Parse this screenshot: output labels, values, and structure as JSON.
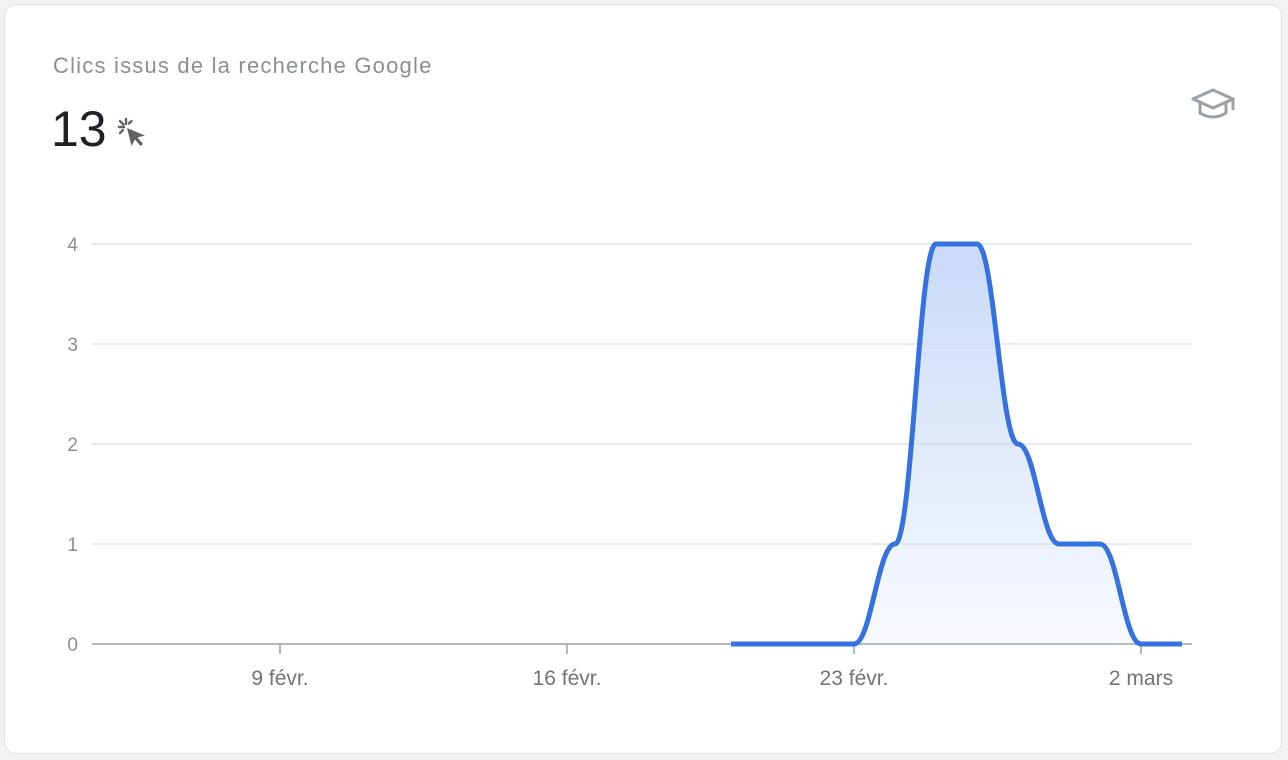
{
  "card": {
    "title": "Clics issus de la recherche Google",
    "total_value": "13",
    "metric_icon": "click-cursor-icon",
    "learn_icon": "graduation-cap-icon"
  },
  "colors": {
    "line": "#3572e0",
    "area_top": "#c9daf8",
    "grid": "#dadce0",
    "axis": "#9aa0a6",
    "label": "#8a8f94"
  },
  "chart_data": {
    "type": "area",
    "title": "Clics issus de la recherche Google",
    "xlabel": "",
    "ylabel": "",
    "ylim": [
      0,
      4
    ],
    "yticks": [
      0,
      1,
      2,
      3,
      4
    ],
    "xticks": [
      "9 févr.",
      "16 févr.",
      "23 févr.",
      "2 mars"
    ],
    "grid": true,
    "legend": "none",
    "series": [
      {
        "x": [
          "20 févr.",
          "21 févr.",
          "22 févr.",
          "23 févr.",
          "24 févr.",
          "25 févr.",
          "26 févr.",
          "27 févr.",
          "28 févr.",
          "1 mars",
          "2 mars",
          "3 mars"
        ],
        "values": [
          0,
          0,
          0,
          0,
          1,
          4,
          4,
          2,
          1,
          1,
          0,
          0
        ]
      }
    ]
  }
}
